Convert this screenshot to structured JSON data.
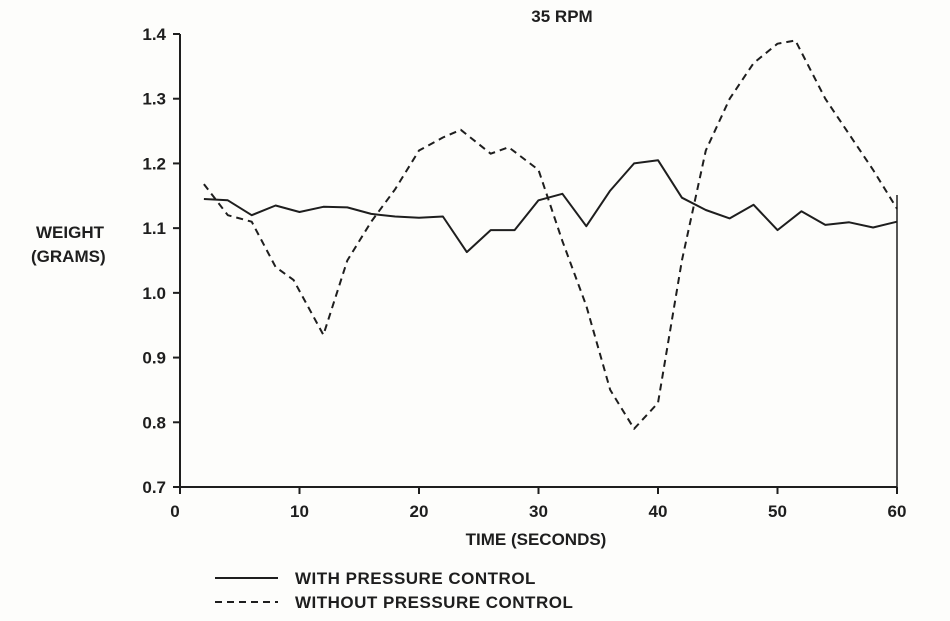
{
  "chart_data": {
    "type": "line",
    "title": "35 RPM",
    "xlabel": "TIME (SECONDS)",
    "ylabel_line1": "WEIGHT",
    "ylabel_line2": "(GRAMS)",
    "xlim": [
      0,
      60
    ],
    "ylim": [
      0.7,
      1.4
    ],
    "x_ticks": [
      "0",
      "10",
      "20",
      "30",
      "40",
      "50",
      "60"
    ],
    "y_ticks": [
      "0.7",
      "0.8",
      "0.9",
      "1.0",
      "1.1",
      "1.2",
      "1.3",
      "1.4"
    ],
    "grid": false,
    "legend_position": "bottom-left",
    "series": [
      {
        "name": "WITH PRESSURE CONTROL",
        "style": "solid",
        "color": "#1e1e1e",
        "x": [
          2,
          4,
          6,
          8,
          10,
          12,
          14,
          16,
          18,
          20,
          22,
          24,
          26,
          28,
          30,
          32,
          34,
          36,
          38,
          40,
          42,
          44,
          46,
          48,
          50,
          52,
          54,
          56,
          58,
          60
        ],
        "y": [
          1.145,
          1.143,
          1.12,
          1.135,
          1.125,
          1.133,
          1.132,
          1.122,
          1.118,
          1.116,
          1.118,
          1.063,
          1.097,
          1.097,
          1.143,
          1.153,
          1.103,
          1.158,
          1.2,
          1.205,
          1.147,
          1.128,
          1.115,
          1.136,
          1.097,
          1.126,
          1.105,
          1.109,
          1.101,
          1.11
        ]
      },
      {
        "name": "WITHOUT PRESSURE CONTROL",
        "style": "dashed",
        "color": "#1e1e1e",
        "x": [
          2,
          4,
          6,
          8,
          9.5,
          12,
          14,
          16,
          18,
          20,
          22,
          23.5,
          26,
          27.5,
          30,
          32,
          34,
          36,
          38,
          40,
          42,
          44,
          46,
          48,
          50,
          51.5,
          54,
          56,
          58,
          60
        ],
        "y": [
          1.168,
          1.12,
          1.11,
          1.04,
          1.02,
          0.935,
          1.05,
          1.11,
          1.16,
          1.22,
          1.24,
          1.252,
          1.215,
          1.225,
          1.19,
          1.08,
          0.98,
          0.85,
          0.79,
          0.83,
          1.05,
          1.22,
          1.3,
          1.355,
          1.385,
          1.39,
          1.3,
          1.245,
          1.19,
          1.13
        ]
      }
    ]
  }
}
